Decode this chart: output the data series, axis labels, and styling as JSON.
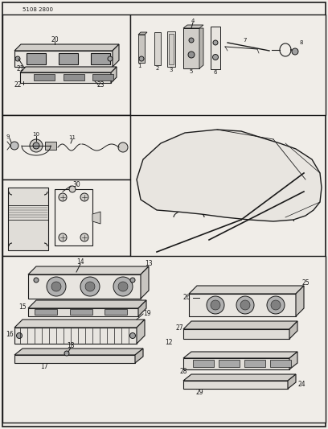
{
  "page_id": "5108 2800",
  "bg_color": "#f0ede8",
  "line_color": "#1a1a1a",
  "figsize": [
    4.08,
    5.33
  ],
  "dpi": 100
}
